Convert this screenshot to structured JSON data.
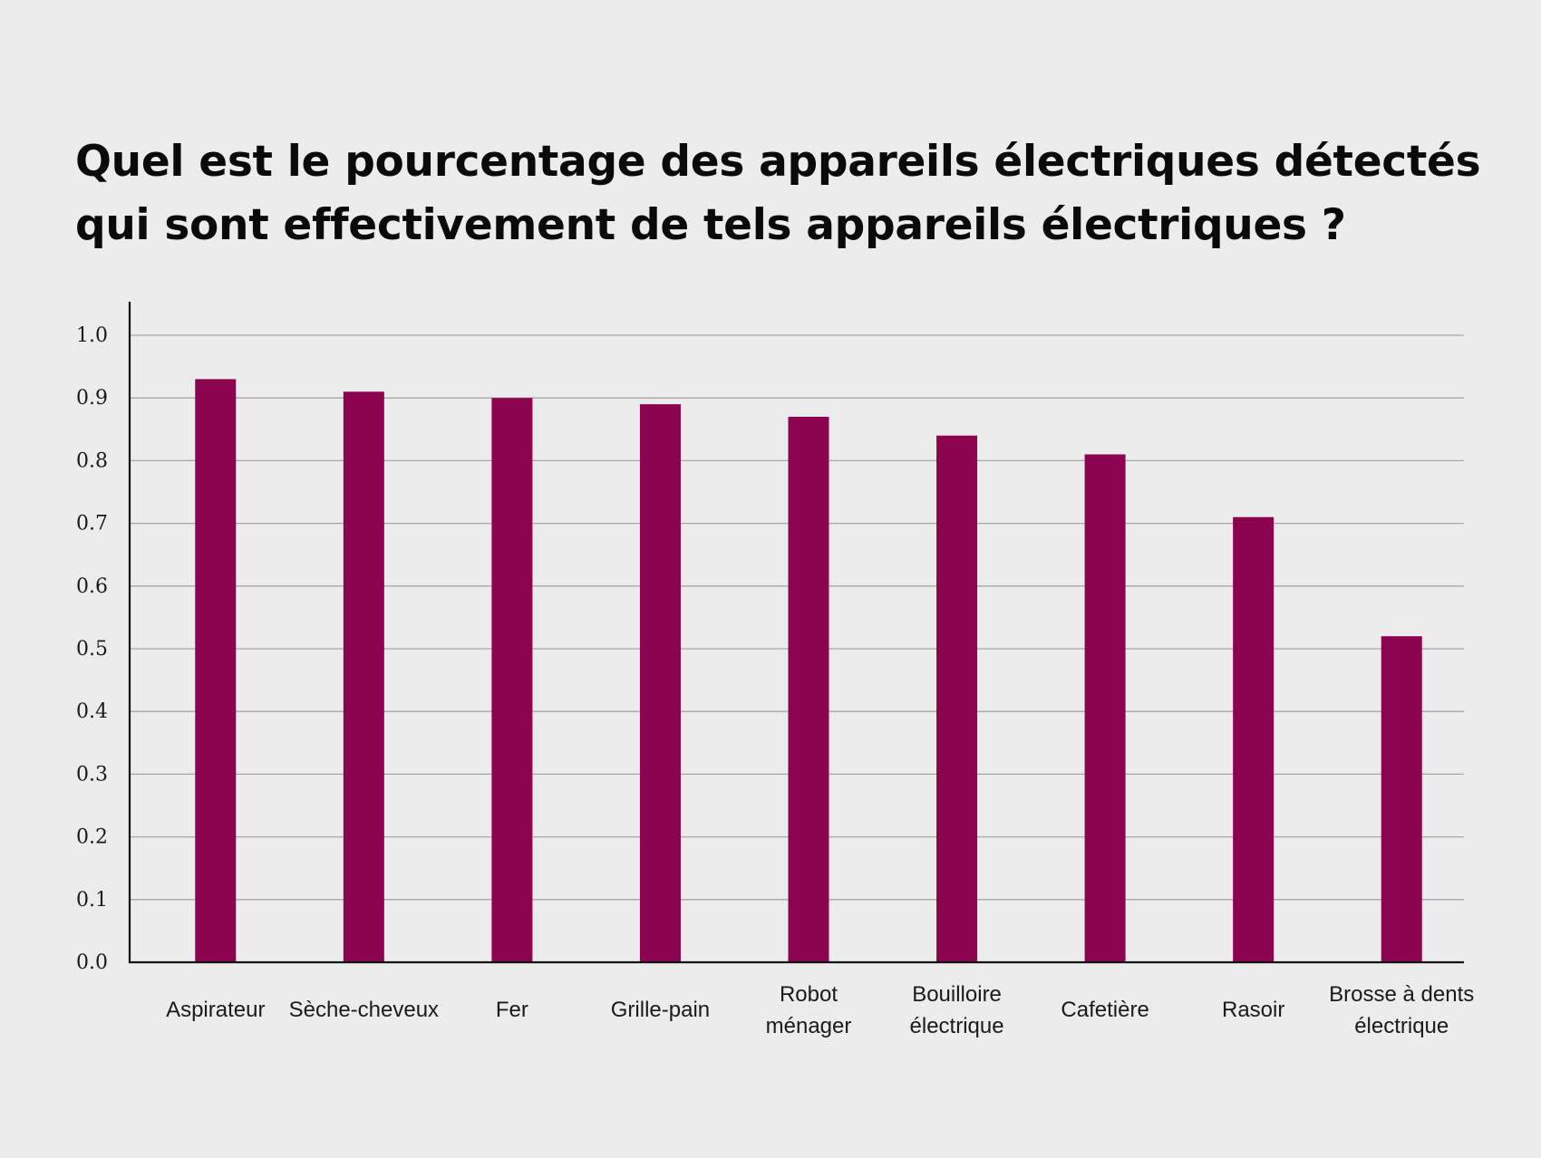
{
  "chart_data": {
    "type": "bar",
    "title": "Quel est le pourcentage des appareils électriques détectés qui sont effectivement de tels appareils électriques ?",
    "xlabel": "",
    "ylabel": "",
    "ylim": [
      0,
      1.05
    ],
    "yticks": [
      "0.0",
      "0.1",
      "0.2",
      "0.3",
      "0.4",
      "0.5",
      "0.6",
      "0.7",
      "0.8",
      "0.9",
      "1.0"
    ],
    "grid": true,
    "bar_color": "#8c044f",
    "categories": [
      [
        "Aspirateur"
      ],
      [
        "Sèche-cheveux"
      ],
      [
        "Fer"
      ],
      [
        "Grille-pain"
      ],
      [
        "Robot",
        "ménager"
      ],
      [
        "Bouilloire",
        "électrique"
      ],
      [
        "Cafetière"
      ],
      [
        "Rasoir"
      ],
      [
        "Brosse à dents",
        "électrique"
      ]
    ],
    "values": [
      0.93,
      0.91,
      0.9,
      0.89,
      0.87,
      0.84,
      0.81,
      0.71,
      0.52
    ]
  }
}
